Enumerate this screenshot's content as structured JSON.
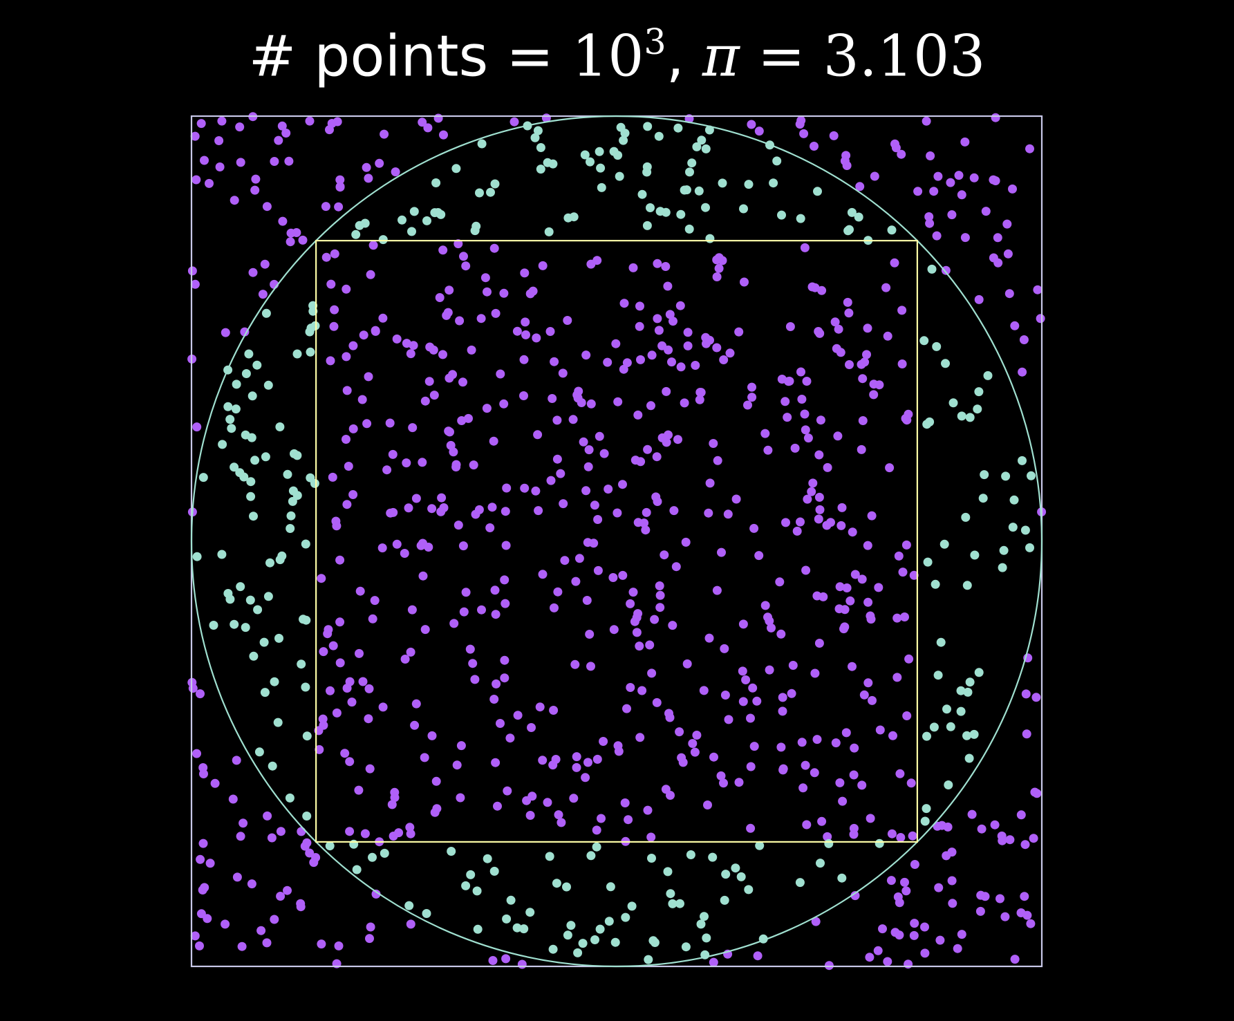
{
  "title": {
    "prefix": "# points = ",
    "base": "10",
    "exponent": "3",
    "separator": ", ",
    "pi_symbol": "π",
    "equals": " = ",
    "pi_value": "3.103"
  },
  "colors": {
    "background": "#000000",
    "outer_square": "#c8c8e8",
    "circle": "#a0e0d0",
    "inner_square": "#ffffa8",
    "point_outside_circle": "#b060f8",
    "point_inside_circle_outside_inner_square": "#a0e0d0",
    "point_inside_inner_square": "#b060f8"
  },
  "chart_data": {
    "type": "scatter",
    "num_points": 1000,
    "pi_estimate": 3.103,
    "xlim": [
      -1,
      1
    ],
    "ylim": [
      -1,
      1
    ],
    "grid": false,
    "legend": "none",
    "shapes": {
      "outer_square_half_side": 1.0,
      "circle_radius": 1.0,
      "inner_square_half_side": 0.7071
    },
    "random_seed": 7
  }
}
